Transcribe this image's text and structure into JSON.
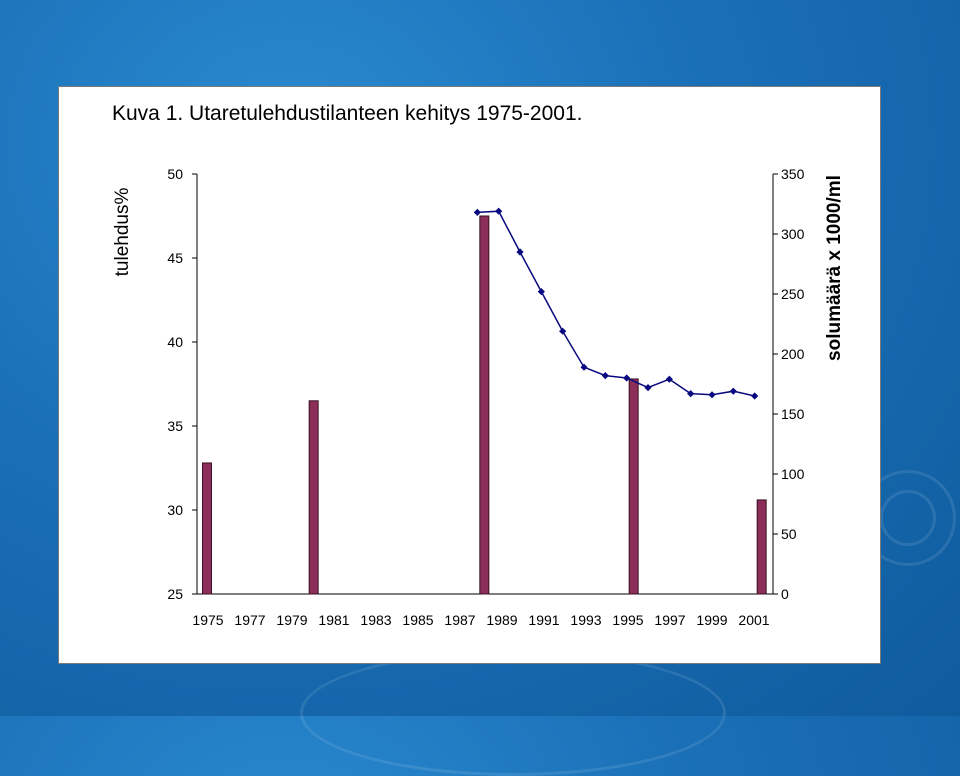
{
  "slide": {
    "title": "Kuva 1. Utaretulehdustilanteen kehitys 1975-2001."
  },
  "chart_data": {
    "type": "bar+line",
    "title": "",
    "x_ticks": [
      "1975",
      "1977",
      "1979",
      "1981",
      "1983",
      "1985",
      "1987",
      "1989",
      "1991",
      "1993",
      "1995",
      "1997",
      "1999",
      "2001"
    ],
    "left_axis": {
      "label": "tulehdus%",
      "ylim": [
        25,
        50
      ],
      "ticks": [
        25,
        30,
        35,
        40,
        45,
        50
      ]
    },
    "right_axis": {
      "label": "solumäärä x 1000/ml",
      "ylim": [
        0,
        350
      ],
      "ticks": [
        0,
        50,
        100,
        150,
        200,
        250,
        300,
        350
      ]
    },
    "bars": {
      "axis": "left",
      "color": "#8b2e5a",
      "x": [
        1975,
        1980,
        1988,
        1995,
        2001
      ],
      "values": [
        32.8,
        36.5,
        47.5,
        37.8,
        30.6
      ]
    },
    "line": {
      "axis": "right",
      "color": "#0a0a80",
      "x": [
        1988,
        1989,
        1990,
        1991,
        1992,
        1993,
        1994,
        1995,
        1996,
        1997,
        1998,
        1999,
        2000,
        2001
      ],
      "values": [
        318,
        319,
        285,
        252,
        219,
        189,
        182,
        180,
        172,
        179,
        167,
        166,
        169,
        165
      ]
    },
    "grid": false
  }
}
